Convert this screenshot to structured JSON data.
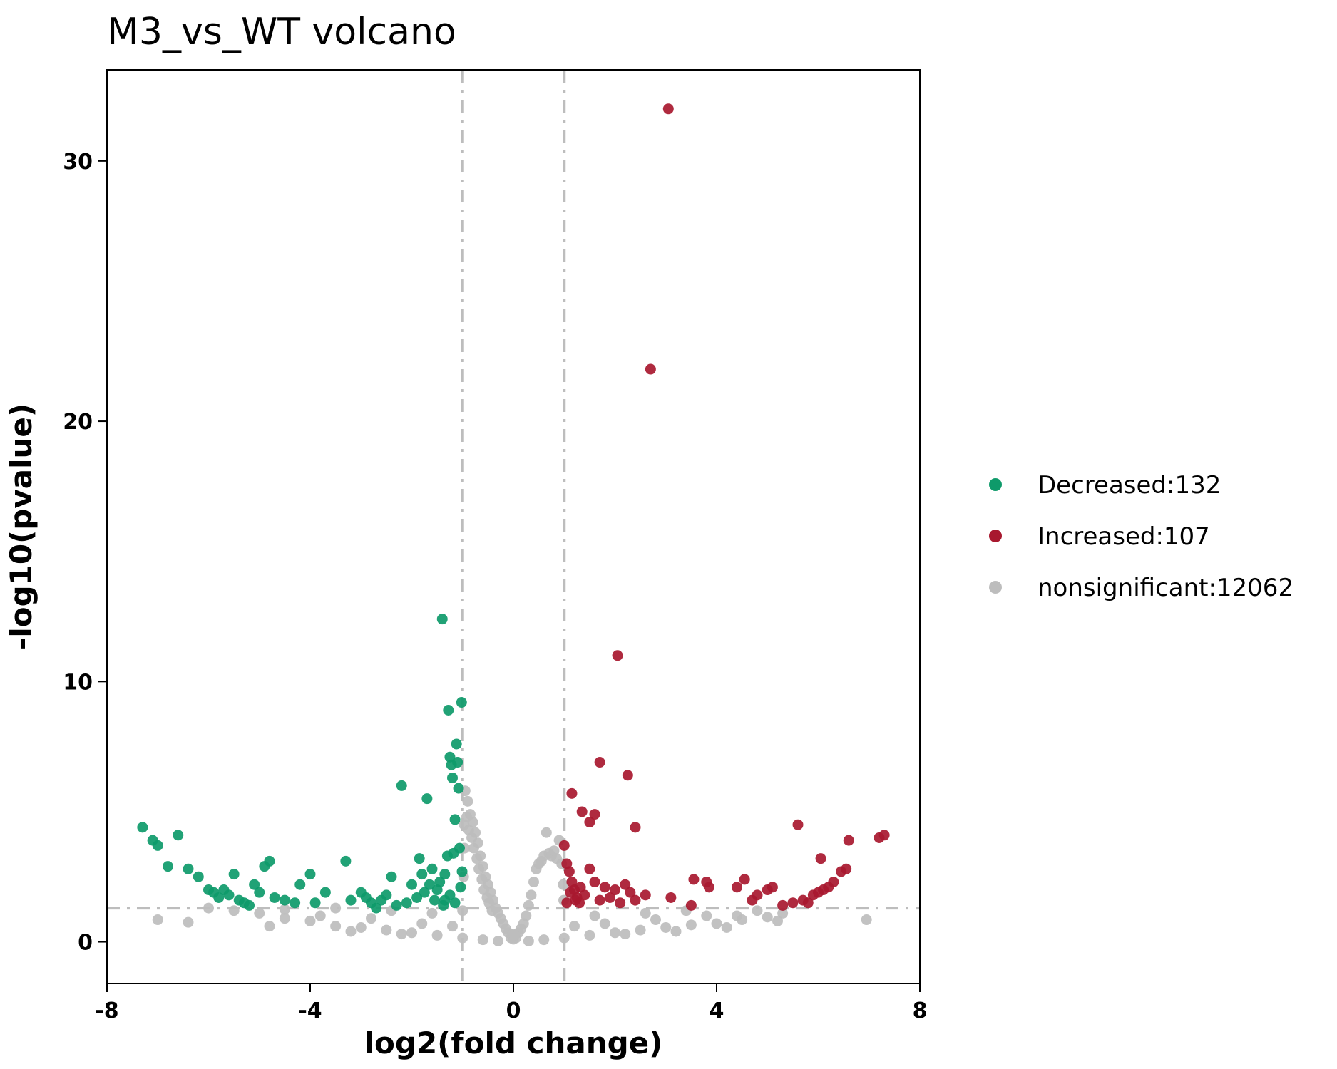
{
  "chart_data": {
    "type": "scatter",
    "title": "M3_vs_WT volcano",
    "xlabel": "log2(fold change)",
    "ylabel": "-log10(pvalue)",
    "xlim": [
      -8,
      8
    ],
    "ylim": [
      -1.6,
      33.5
    ],
    "xticks": [
      -8,
      -4,
      0,
      4,
      8
    ],
    "yticks": [
      0,
      10,
      20,
      30
    ],
    "grid": false,
    "legend_position": "right",
    "thresholds": {
      "log2fc": [
        -1,
        1
      ],
      "neg_log10_p": 1.3
    },
    "colors": {
      "Decreased": "#0e9a6a",
      "Increased": "#a8182f",
      "nonsignificant": "#bdbdbd",
      "threshold_line": "#bdbdbd"
    },
    "legend": [
      {
        "key": "Decreased",
        "label": "Decreased:132"
      },
      {
        "key": "Increased",
        "label": "Increased:107"
      },
      {
        "key": "nonsignificant",
        "label": "nonsignificant:12062"
      }
    ],
    "series": [
      {
        "name": "Decreased",
        "points": [
          [
            -7.3,
            4.4
          ],
          [
            -7.1,
            3.9
          ],
          [
            -7.0,
            3.7
          ],
          [
            -6.8,
            2.9
          ],
          [
            -6.6,
            4.1
          ],
          [
            -6.4,
            2.8
          ],
          [
            -6.2,
            2.5
          ],
          [
            -6.0,
            2.0
          ],
          [
            -5.9,
            1.9
          ],
          [
            -5.8,
            1.7
          ],
          [
            -5.7,
            2.0
          ],
          [
            -5.6,
            1.8
          ],
          [
            -5.5,
            2.6
          ],
          [
            -5.4,
            1.6
          ],
          [
            -5.3,
            1.5
          ],
          [
            -5.2,
            1.4
          ],
          [
            -5.1,
            2.2
          ],
          [
            -5.0,
            1.9
          ],
          [
            -4.9,
            2.9
          ],
          [
            -4.8,
            3.1
          ],
          [
            -4.7,
            1.7
          ],
          [
            -4.5,
            1.6
          ],
          [
            -4.3,
            1.5
          ],
          [
            -4.2,
            2.2
          ],
          [
            -4.0,
            2.6
          ],
          [
            -3.9,
            1.5
          ],
          [
            -3.7,
            1.9
          ],
          [
            -3.3,
            3.1
          ],
          [
            -3.2,
            1.6
          ],
          [
            -3.0,
            1.9
          ],
          [
            -2.9,
            1.7
          ],
          [
            -2.8,
            1.5
          ],
          [
            -2.7,
            1.3
          ],
          [
            -2.6,
            1.6
          ],
          [
            -2.5,
            1.8
          ],
          [
            -2.4,
            2.5
          ],
          [
            -2.3,
            1.4
          ],
          [
            -2.2,
            6.0
          ],
          [
            -2.1,
            1.5
          ],
          [
            -2.0,
            2.2
          ],
          [
            -1.9,
            1.7
          ],
          [
            -1.85,
            3.2
          ],
          [
            -1.8,
            2.6
          ],
          [
            -1.75,
            1.9
          ],
          [
            -1.7,
            5.5
          ],
          [
            -1.65,
            2.2
          ],
          [
            -1.6,
            2.8
          ],
          [
            -1.55,
            1.6
          ],
          [
            -1.5,
            2.0
          ],
          [
            -1.45,
            2.3
          ],
          [
            -1.4,
            12.4
          ],
          [
            -1.38,
            1.4
          ],
          [
            -1.35,
            2.6
          ],
          [
            -1.3,
            3.3
          ],
          [
            -1.28,
            8.9
          ],
          [
            -1.25,
            7.1
          ],
          [
            -1.22,
            6.8
          ],
          [
            -1.2,
            6.3
          ],
          [
            -1.18,
            3.4
          ],
          [
            -1.15,
            4.7
          ],
          [
            -1.12,
            7.6
          ],
          [
            -1.1,
            6.9
          ],
          [
            -1.08,
            5.9
          ],
          [
            -1.06,
            3.6
          ],
          [
            -1.04,
            2.1
          ],
          [
            -1.02,
            9.2
          ],
          [
            -1.01,
            2.7
          ],
          [
            -1.15,
            1.5
          ],
          [
            -1.25,
            1.8
          ],
          [
            -1.35,
            1.6
          ]
        ]
      },
      {
        "name": "Increased",
        "points": [
          [
            3.05,
            32.0
          ],
          [
            2.7,
            22.0
          ],
          [
            2.05,
            11.0
          ],
          [
            1.7,
            6.9
          ],
          [
            2.25,
            6.4
          ],
          [
            1.15,
            5.7
          ],
          [
            1.35,
            5.0
          ],
          [
            1.6,
            4.9
          ],
          [
            1.5,
            4.6
          ],
          [
            2.4,
            4.4
          ],
          [
            1.0,
            3.7
          ],
          [
            1.05,
            3.0
          ],
          [
            1.1,
            2.7
          ],
          [
            1.15,
            2.3
          ],
          [
            1.2,
            2.0
          ],
          [
            1.25,
            1.7
          ],
          [
            1.3,
            1.5
          ],
          [
            1.4,
            1.8
          ],
          [
            1.5,
            2.8
          ],
          [
            1.6,
            2.3
          ],
          [
            1.7,
            1.6
          ],
          [
            1.8,
            2.1
          ],
          [
            1.9,
            1.7
          ],
          [
            2.0,
            2.0
          ],
          [
            2.1,
            1.5
          ],
          [
            2.2,
            2.2
          ],
          [
            2.3,
            1.9
          ],
          [
            2.4,
            1.6
          ],
          [
            2.6,
            1.8
          ],
          [
            3.1,
            1.7
          ],
          [
            3.5,
            1.4
          ],
          [
            3.55,
            2.4
          ],
          [
            3.8,
            2.3
          ],
          [
            3.85,
            2.1
          ],
          [
            4.4,
            2.1
          ],
          [
            4.55,
            2.4
          ],
          [
            4.7,
            1.6
          ],
          [
            4.8,
            1.8
          ],
          [
            5.0,
            2.0
          ],
          [
            5.1,
            2.1
          ],
          [
            5.3,
            1.4
          ],
          [
            5.5,
            1.5
          ],
          [
            5.6,
            4.5
          ],
          [
            5.7,
            1.6
          ],
          [
            5.8,
            1.5
          ],
          [
            5.9,
            1.8
          ],
          [
            6.0,
            1.9
          ],
          [
            6.05,
            3.2
          ],
          [
            6.1,
            2.0
          ],
          [
            6.2,
            2.1
          ],
          [
            6.3,
            2.3
          ],
          [
            6.45,
            2.7
          ],
          [
            6.55,
            2.8
          ],
          [
            6.6,
            3.9
          ],
          [
            7.2,
            4.0
          ],
          [
            7.3,
            4.1
          ],
          [
            1.05,
            1.5
          ],
          [
            1.12,
            1.9
          ],
          [
            1.22,
            1.6
          ],
          [
            1.32,
            2.1
          ]
        ]
      },
      {
        "name": "nonsignificant",
        "points": [
          [
            -7.0,
            0.85
          ],
          [
            -6.4,
            0.75
          ],
          [
            6.95,
            0.85
          ],
          [
            0.65,
            4.2
          ],
          [
            -0.95,
            5.8
          ],
          [
            -0.9,
            5.4
          ],
          [
            -0.85,
            4.9
          ],
          [
            -0.8,
            4.6
          ],
          [
            -0.75,
            4.2
          ],
          [
            -0.7,
            3.8
          ],
          [
            -0.65,
            3.3
          ],
          [
            -0.6,
            2.9
          ],
          [
            -0.55,
            2.5
          ],
          [
            -0.5,
            2.2
          ],
          [
            -0.45,
            1.9
          ],
          [
            -0.4,
            1.6
          ],
          [
            -0.35,
            1.3
          ],
          [
            -0.3,
            1.1
          ],
          [
            -0.25,
            0.9
          ],
          [
            -0.2,
            0.7
          ],
          [
            -0.15,
            0.5
          ],
          [
            -0.1,
            0.35
          ],
          [
            0.1,
            0.35
          ],
          [
            0.15,
            0.5
          ],
          [
            0.2,
            0.7
          ],
          [
            0.25,
            1.0
          ],
          [
            0.3,
            1.4
          ],
          [
            0.35,
            1.8
          ],
          [
            0.4,
            2.3
          ],
          [
            0.45,
            2.8
          ],
          [
            0.5,
            3.0
          ],
          [
            0.55,
            3.1
          ],
          [
            0.6,
            3.3
          ],
          [
            0.7,
            3.4
          ],
          [
            0.75,
            3.3
          ],
          [
            0.8,
            3.5
          ],
          [
            0.85,
            3.2
          ],
          [
            0.9,
            3.9
          ],
          [
            0.95,
            3.0
          ],
          [
            -0.92,
            4.8
          ],
          [
            -0.88,
            4.3
          ],
          [
            -0.82,
            4.0
          ],
          [
            -0.78,
            3.6
          ],
          [
            -0.72,
            3.2
          ],
          [
            -0.68,
            2.8
          ],
          [
            -0.62,
            2.4
          ],
          [
            -0.58,
            2.0
          ],
          [
            -0.52,
            1.7
          ],
          [
            -0.48,
            1.5
          ],
          [
            -0.42,
            1.2
          ],
          [
            -5.5,
            1.2
          ],
          [
            -5.0,
            1.1
          ],
          [
            -4.5,
            0.9
          ],
          [
            -4.0,
            0.8
          ],
          [
            -3.5,
            0.6
          ],
          [
            -3.0,
            0.55
          ],
          [
            -2.5,
            0.45
          ],
          [
            -2.0,
            0.35
          ],
          [
            -1.5,
            0.25
          ],
          [
            -1.0,
            0.15
          ],
          [
            -0.6,
            0.08
          ],
          [
            -0.3,
            0.03
          ],
          [
            0.3,
            0.03
          ],
          [
            0.6,
            0.08
          ],
          [
            1.0,
            0.15
          ],
          [
            1.5,
            0.25
          ],
          [
            2.0,
            0.35
          ],
          [
            2.5,
            0.45
          ],
          [
            3.0,
            0.55
          ],
          [
            3.5,
            0.65
          ],
          [
            4.0,
            0.7
          ],
          [
            4.5,
            0.85
          ],
          [
            5.0,
            0.95
          ],
          [
            5.3,
            1.1
          ],
          [
            -6.0,
            1.3
          ],
          [
            -3.8,
            1.0
          ],
          [
            -2.8,
            0.9
          ],
          [
            -1.8,
            0.7
          ],
          [
            -1.2,
            0.6
          ],
          [
            1.2,
            0.6
          ],
          [
            1.8,
            0.7
          ],
          [
            2.8,
            0.85
          ],
          [
            3.8,
            1.0
          ],
          [
            4.8,
            1.2
          ],
          [
            -4.8,
            0.6
          ],
          [
            -3.2,
            0.4
          ],
          [
            -2.2,
            0.3
          ],
          [
            2.2,
            0.3
          ],
          [
            3.2,
            0.4
          ],
          [
            4.2,
            0.55
          ],
          [
            5.2,
            0.8
          ],
          [
            -1.0,
            1.2
          ],
          [
            -0.98,
            2.5
          ],
          [
            -0.96,
            3.6
          ],
          [
            0.98,
            2.2
          ],
          [
            0.99,
            1.6
          ],
          [
            -1.6,
            1.1
          ],
          [
            1.6,
            1.0
          ],
          [
            -2.4,
            1.2
          ],
          [
            2.6,
            1.1
          ],
          [
            -3.5,
            1.3
          ],
          [
            3.4,
            1.2
          ],
          [
            -4.5,
            1.25
          ],
          [
            4.4,
            1.0
          ],
          [
            0.05,
            0.15
          ],
          [
            -0.05,
            0.15
          ],
          [
            0.0,
            0.1
          ],
          [
            -0.02,
            0.3
          ],
          [
            0.02,
            0.25
          ],
          [
            -0.97,
            4.5
          ]
        ]
      }
    ]
  }
}
